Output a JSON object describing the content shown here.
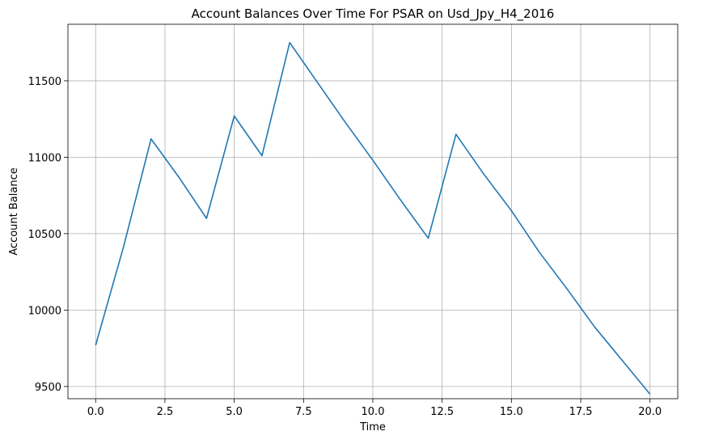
{
  "chart_data": {
    "type": "line",
    "title": "Account Balances Over Time For PSAR on Usd_Jpy_H4_2016",
    "xlabel": "Time",
    "ylabel": "Account Balance",
    "xlim": [
      -1.0,
      21.0
    ],
    "ylim": [
      9420,
      11870
    ],
    "xticks": [
      0.0,
      2.5,
      5.0,
      7.5,
      10.0,
      12.5,
      15.0,
      17.5,
      20.0
    ],
    "xtick_labels": [
      "0.0",
      "2.5",
      "5.0",
      "7.5",
      "10.0",
      "12.5",
      "15.0",
      "17.5",
      "20.0"
    ],
    "yticks": [
      9500,
      10000,
      10500,
      11000,
      11500
    ],
    "ytick_labels": [
      "9500",
      "10000",
      "10500",
      "11000",
      "11500"
    ],
    "grid": true,
    "series": [
      {
        "color": "#1f77b4",
        "x": [
          0,
          1,
          2,
          3,
          4,
          5,
          6,
          7,
          8,
          9,
          10,
          11,
          12,
          13,
          14,
          15,
          16,
          17,
          18,
          19,
          20
        ],
        "y": [
          9770,
          10410,
          11120,
          10870,
          10600,
          11270,
          11010,
          11750,
          11490,
          11230,
          10980,
          10720,
          10470,
          11150,
          10890,
          10650,
          10380,
          10140,
          9890,
          9670,
          9450
        ]
      }
    ]
  }
}
